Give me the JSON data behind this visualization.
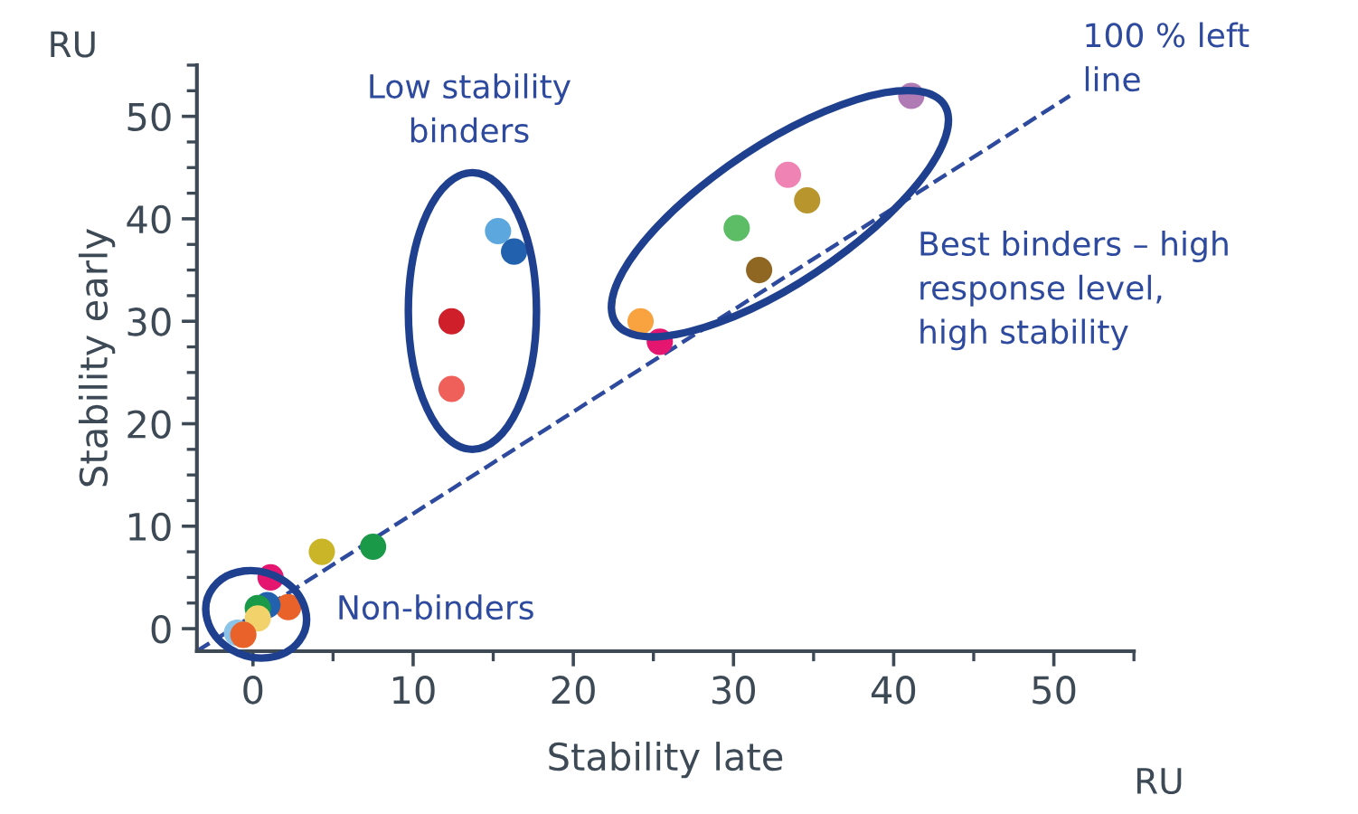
{
  "chart_data": {
    "type": "scatter",
    "xlabel": "Stability late",
    "ylabel": "Stability early",
    "xlim": [
      -3.5,
      55
    ],
    "ylim": [
      -2.2,
      55
    ],
    "xticks": [
      0,
      10,
      20,
      30,
      40,
      50
    ],
    "yticks": [
      0,
      10,
      20,
      30,
      40,
      50
    ],
    "grid": false,
    "legend": false,
    "series": [
      {
        "marker": "circle",
        "x": [
          41.1,
          33.4,
          34.6,
          30.2,
          31.6,
          24.2,
          25.4,
          15.3,
          16.3,
          12.4,
          12.4,
          4.3,
          7.5,
          1.1,
          2.2,
          0.9,
          0.3,
          0.3,
          -1.0,
          -0.6
        ],
        "values": [
          52.0,
          44.3,
          41.8,
          39.1,
          35.0,
          30.0,
          28.0,
          38.8,
          36.8,
          30.0,
          23.4,
          7.5,
          8.0,
          5.0,
          2.1,
          2.3,
          2.0,
          1.0,
          -0.4,
          -0.6
        ],
        "colors": [
          "#b07ab5",
          "#ef84b4",
          "#b8952d",
          "#5cbd66",
          "#8f6622",
          "#f9a340",
          "#e5166f",
          "#5da7df",
          "#2261ad",
          "#cf1f2b",
          "#f0605a",
          "#c9b527",
          "#1a9a48",
          "#e5166f",
          "#e8622a",
          "#2261ad",
          "#1a9a48",
          "#f2d36b",
          "#8cc3e8",
          "#e8622a"
        ]
      },
      {
        "type": "line",
        "x": [
          -3.5,
          51
        ],
        "values": [
          -2.2,
          52
        ],
        "color": "#2e4a9e",
        "line_style": "dashed"
      }
    ],
    "annotations": [
      "RU",
      "RU",
      "Low stability\nbinders",
      "Non-binders",
      "100 % left\nline",
      "Best binders – high\nresponse level,\nhigh stability"
    ]
  }
}
